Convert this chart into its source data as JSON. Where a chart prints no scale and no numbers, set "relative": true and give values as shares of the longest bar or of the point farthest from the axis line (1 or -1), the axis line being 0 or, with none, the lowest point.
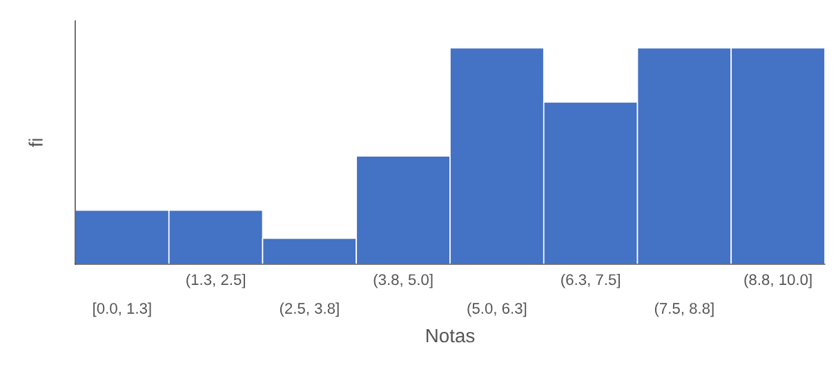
{
  "chart_data": {
    "type": "bar",
    "relative": true,
    "xlabel": "Notas",
    "ylabel": "fi",
    "categories": [
      "[0.0, 1.3]",
      "(1.3, 2.5]",
      "(2.5, 3.8]",
      "(3.8, 5.0]",
      "(5.0, 6.3]",
      "(6.3, 7.5]",
      "(7.5, 8.8]",
      "(8.8, 10.0]"
    ],
    "values": [
      0.25,
      0.25,
      0.12,
      0.5,
      1,
      0.75,
      1,
      1
    ],
    "color": "#4472c4",
    "grid": false,
    "legend": false
  }
}
